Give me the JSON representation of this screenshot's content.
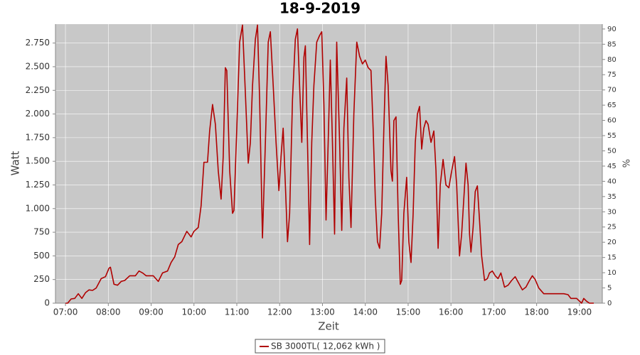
{
  "chart_data": {
    "type": "line",
    "title": "18-9-2019",
    "xlabel": "Zeit",
    "ylabel": "Watt",
    "y2label": "%",
    "x": [
      "07:00",
      "07:03",
      "07:08",
      "07:13",
      "07:18",
      "07:23",
      "07:28",
      "07:33",
      "07:38",
      "07:43",
      "07:50",
      "07:56",
      "08:01",
      "08:03",
      "08:08",
      "08:13",
      "08:18",
      "08:23",
      "08:30",
      "08:38",
      "08:43",
      "08:48",
      "08:53",
      "09:03",
      "09:10",
      "09:16",
      "09:23",
      "09:28",
      "09:33",
      "09:38",
      "09:43",
      "09:50",
      "09:56",
      "10:00",
      "10:06",
      "10:10",
      "10:14",
      "10:19",
      "10:22",
      "10:26",
      "10:30",
      "10:34",
      "10:38",
      "10:41",
      "10:44",
      "10:46",
      "10:50",
      "10:54",
      "10:56",
      "11:00",
      "11:04",
      "11:08",
      "11:12",
      "11:16",
      "11:19",
      "11:22",
      "11:26",
      "11:29",
      "11:32",
      "11:36",
      "11:40",
      "11:44",
      "11:47",
      "11:51",
      "11:55",
      "11:59",
      "12:02",
      "12:05",
      "12:08",
      "12:11",
      "12:14",
      "12:18",
      "12:22",
      "12:25",
      "12:28",
      "12:31",
      "12:34",
      "12:36",
      "12:39",
      "12:42",
      "12:45",
      "12:48",
      "12:52",
      "12:56",
      "12:59",
      "13:02",
      "13:05",
      "13:08",
      "13:11",
      "13:14",
      "13:17",
      "13:20",
      "13:24",
      "13:27",
      "13:30",
      "13:34",
      "13:37",
      "13:40",
      "13:44",
      "13:48",
      "13:52",
      "13:56",
      "14:00",
      "14:04",
      "14:08",
      "14:11",
      "14:14",
      "14:17",
      "14:20",
      "14:23",
      "14:26",
      "14:29",
      "14:32",
      "14:36",
      "14:38",
      "14:40",
      "14:43",
      "14:46",
      "14:49",
      "14:51",
      "14:54",
      "14:58",
      "15:01",
      "15:04",
      "15:07",
      "15:10",
      "15:13",
      "15:16",
      "15:19",
      "15:22",
      "15:25",
      "15:28",
      "15:32",
      "15:36",
      "15:39",
      "15:42",
      "15:45",
      "15:49",
      "15:53",
      "15:57",
      "16:01",
      "16:05",
      "16:08",
      "16:12",
      "16:15",
      "16:18",
      "16:21",
      "16:24",
      "16:26",
      "16:28",
      "16:31",
      "16:34",
      "16:37",
      "16:40",
      "16:43",
      "16:47",
      "16:51",
      "16:54",
      "16:58",
      "17:02",
      "17:06",
      "17:10",
      "17:15",
      "17:20",
      "17:25",
      "17:30",
      "17:35",
      "17:40",
      "17:45",
      "17:50",
      "17:54",
      "17:58",
      "18:03",
      "18:10",
      "18:18",
      "18:28",
      "18:38",
      "18:44",
      "18:48",
      "18:56",
      "19:03",
      "19:06",
      "19:10",
      "19:14",
      "19:20"
    ],
    "series": [
      {
        "name": "SB 3000TL( 12,062 kWh )",
        "color": "#b00000",
        "values": [
          0,
          0,
          45,
          50,
          100,
          50,
          110,
          140,
          135,
          160,
          260,
          280,
          370,
          380,
          200,
          190,
          230,
          240,
          290,
          290,
          340,
          320,
          290,
          290,
          230,
          320,
          340,
          430,
          490,
          620,
          650,
          760,
          700,
          760,
          800,
          1030,
          1490,
          1490,
          1820,
          2100,
          1890,
          1400,
          1100,
          1550,
          2490,
          2460,
          1400,
          950,
          980,
          1850,
          2760,
          2940,
          2230,
          1480,
          1700,
          2300,
          2790,
          2940,
          2150,
          690,
          1700,
          2760,
          2870,
          2300,
          1700,
          1190,
          1550,
          1850,
          1250,
          650,
          950,
          2150,
          2790,
          2900,
          2300,
          1700,
          2600,
          2720,
          1700,
          620,
          1700,
          2300,
          2760,
          2830,
          2870,
          2100,
          880,
          1700,
          2570,
          1700,
          730,
          2760,
          1700,
          770,
          1850,
          2380,
          1330,
          800,
          2000,
          2760,
          2610,
          2530,
          2570,
          2490,
          2460,
          1850,
          1100,
          650,
          580,
          950,
          1850,
          2610,
          2300,
          1400,
          1290,
          1930,
          1970,
          950,
          200,
          240,
          950,
          1330,
          650,
          430,
          950,
          1700,
          2000,
          2080,
          1630,
          1850,
          1930,
          1890,
          1700,
          1820,
          1400,
          580,
          1250,
          1520,
          1250,
          1220,
          1400,
          1550,
          1250,
          500,
          730,
          1100,
          1480,
          1250,
          730,
          540,
          800,
          1180,
          1240,
          880,
          500,
          240,
          260,
          320,
          340,
          290,
          260,
          320,
          170,
          190,
          240,
          280,
          210,
          140,
          170,
          240,
          290,
          250,
          160,
          100,
          100,
          100,
          100,
          90,
          50,
          50,
          0,
          50,
          20,
          0,
          0
        ]
      }
    ],
    "xlim": [
      "06:46",
      "19:32"
    ],
    "xticks": [
      "07:00",
      "08:00",
      "09:00",
      "10:00",
      "11:00",
      "12:00",
      "13:00",
      "14:00",
      "15:00",
      "16:00",
      "17:00",
      "18:00",
      "19:00"
    ],
    "ylim": [
      0,
      2950
    ],
    "yticks": [
      0,
      250,
      500,
      750,
      {
        "value": 1000,
        "label": "1.000"
      },
      {
        "value": 1250,
        "label": "1.250"
      },
      {
        "value": 1500,
        "label": "1.500"
      },
      {
        "value": 1750,
        "label": "1.750"
      },
      {
        "value": 2000,
        "label": "2.000"
      },
      {
        "value": 2250,
        "label": "2.250"
      },
      {
        "value": 2500,
        "label": "2.500"
      },
      {
        "value": 2750,
        "label": "2.750"
      }
    ],
    "y2lim": [
      0,
      91.6
    ],
    "y2ticks": [
      0,
      5,
      10,
      15,
      20,
      25,
      30,
      35,
      40,
      45,
      50,
      55,
      60,
      65,
      70,
      75,
      80,
      85,
      90
    ],
    "grid": true
  }
}
